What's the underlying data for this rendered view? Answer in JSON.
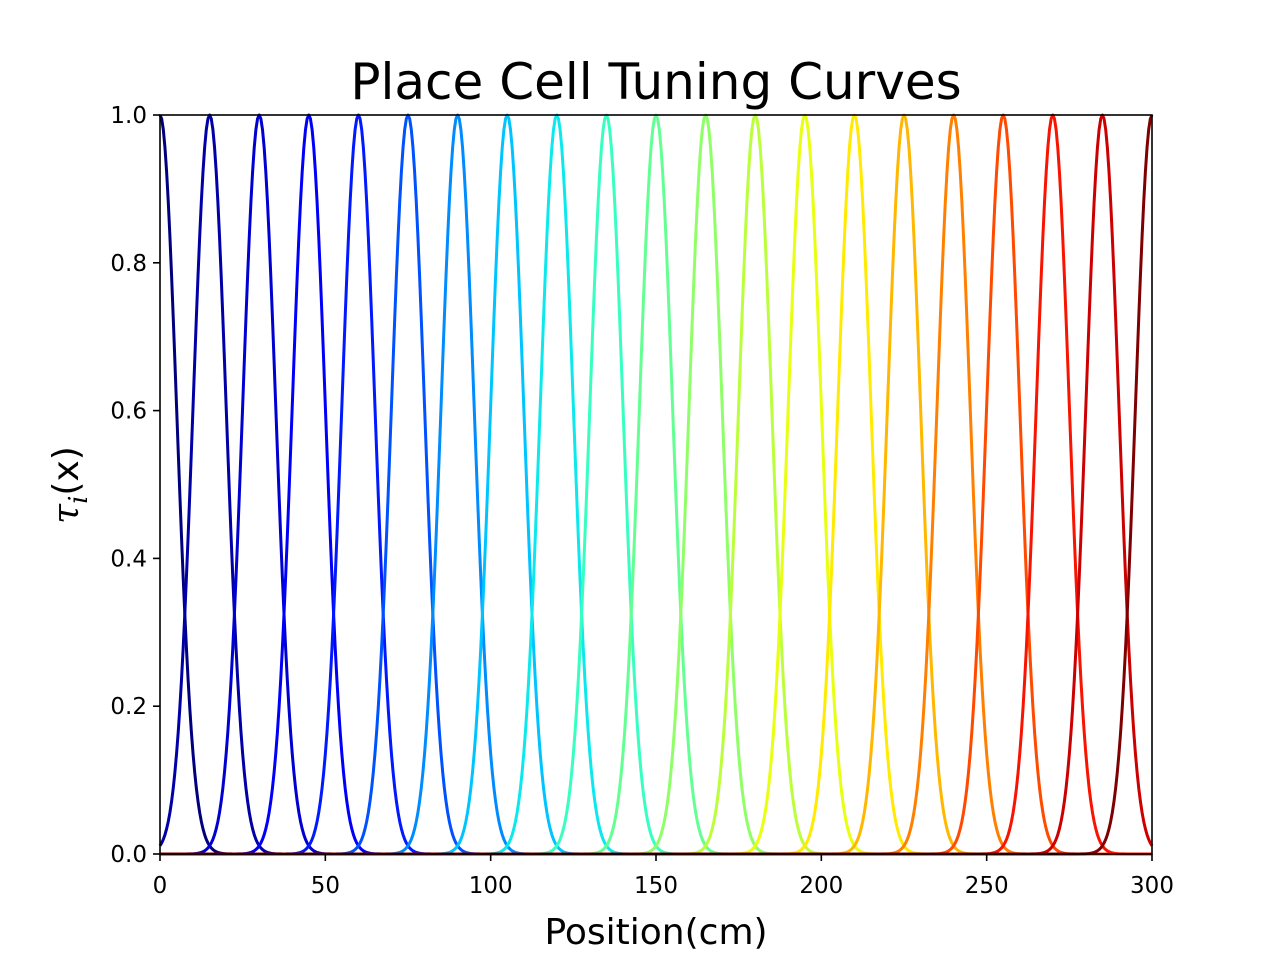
{
  "chart_data": {
    "type": "line",
    "title": "Place Cell Tuning Curves",
    "xlabel": "Position(cm)",
    "ylabel": {
      "symbol": "τ",
      "subscript": "i",
      "suffix": "(x)"
    },
    "xlim": [
      0,
      300
    ],
    "ylim": [
      0,
      1
    ],
    "xticks": [
      0,
      50,
      100,
      150,
      200,
      250,
      300
    ],
    "yticks": [
      0.0,
      0.2,
      0.4,
      0.6,
      0.8,
      1.0
    ],
    "grid": false,
    "legend": "none",
    "colormap": "jet",
    "curve_shape": "gaussian",
    "amplitude": 1.0,
    "sigma": 5,
    "series": [
      {
        "center": 0,
        "color": "#00007f"
      },
      {
        "center": 15,
        "color": "#0000a6"
      },
      {
        "center": 30,
        "color": "#0000d1"
      },
      {
        "center": 45,
        "color": "#0000fa"
      },
      {
        "center": 60,
        "color": "#0019ff"
      },
      {
        "center": 75,
        "color": "#0051ff"
      },
      {
        "center": 90,
        "color": "#008cff"
      },
      {
        "center": 105,
        "color": "#00c4ff"
      },
      {
        "center": 120,
        "color": "#0ce8ec"
      },
      {
        "center": 135,
        "color": "#37ffc0"
      },
      {
        "center": 150,
        "color": "#64ff93"
      },
      {
        "center": 165,
        "color": "#8fff68"
      },
      {
        "center": 180,
        "color": "#bbff3c"
      },
      {
        "center": 195,
        "color": "#e8ff0f"
      },
      {
        "center": 210,
        "color": "#ffea00"
      },
      {
        "center": 225,
        "color": "#ffb700"
      },
      {
        "center": 240,
        "color": "#ff8000"
      },
      {
        "center": 255,
        "color": "#ff4a00"
      },
      {
        "center": 270,
        "color": "#f81400"
      },
      {
        "center": 285,
        "color": "#cc0000"
      },
      {
        "center": 300,
        "color": "#7f0000"
      }
    ]
  }
}
